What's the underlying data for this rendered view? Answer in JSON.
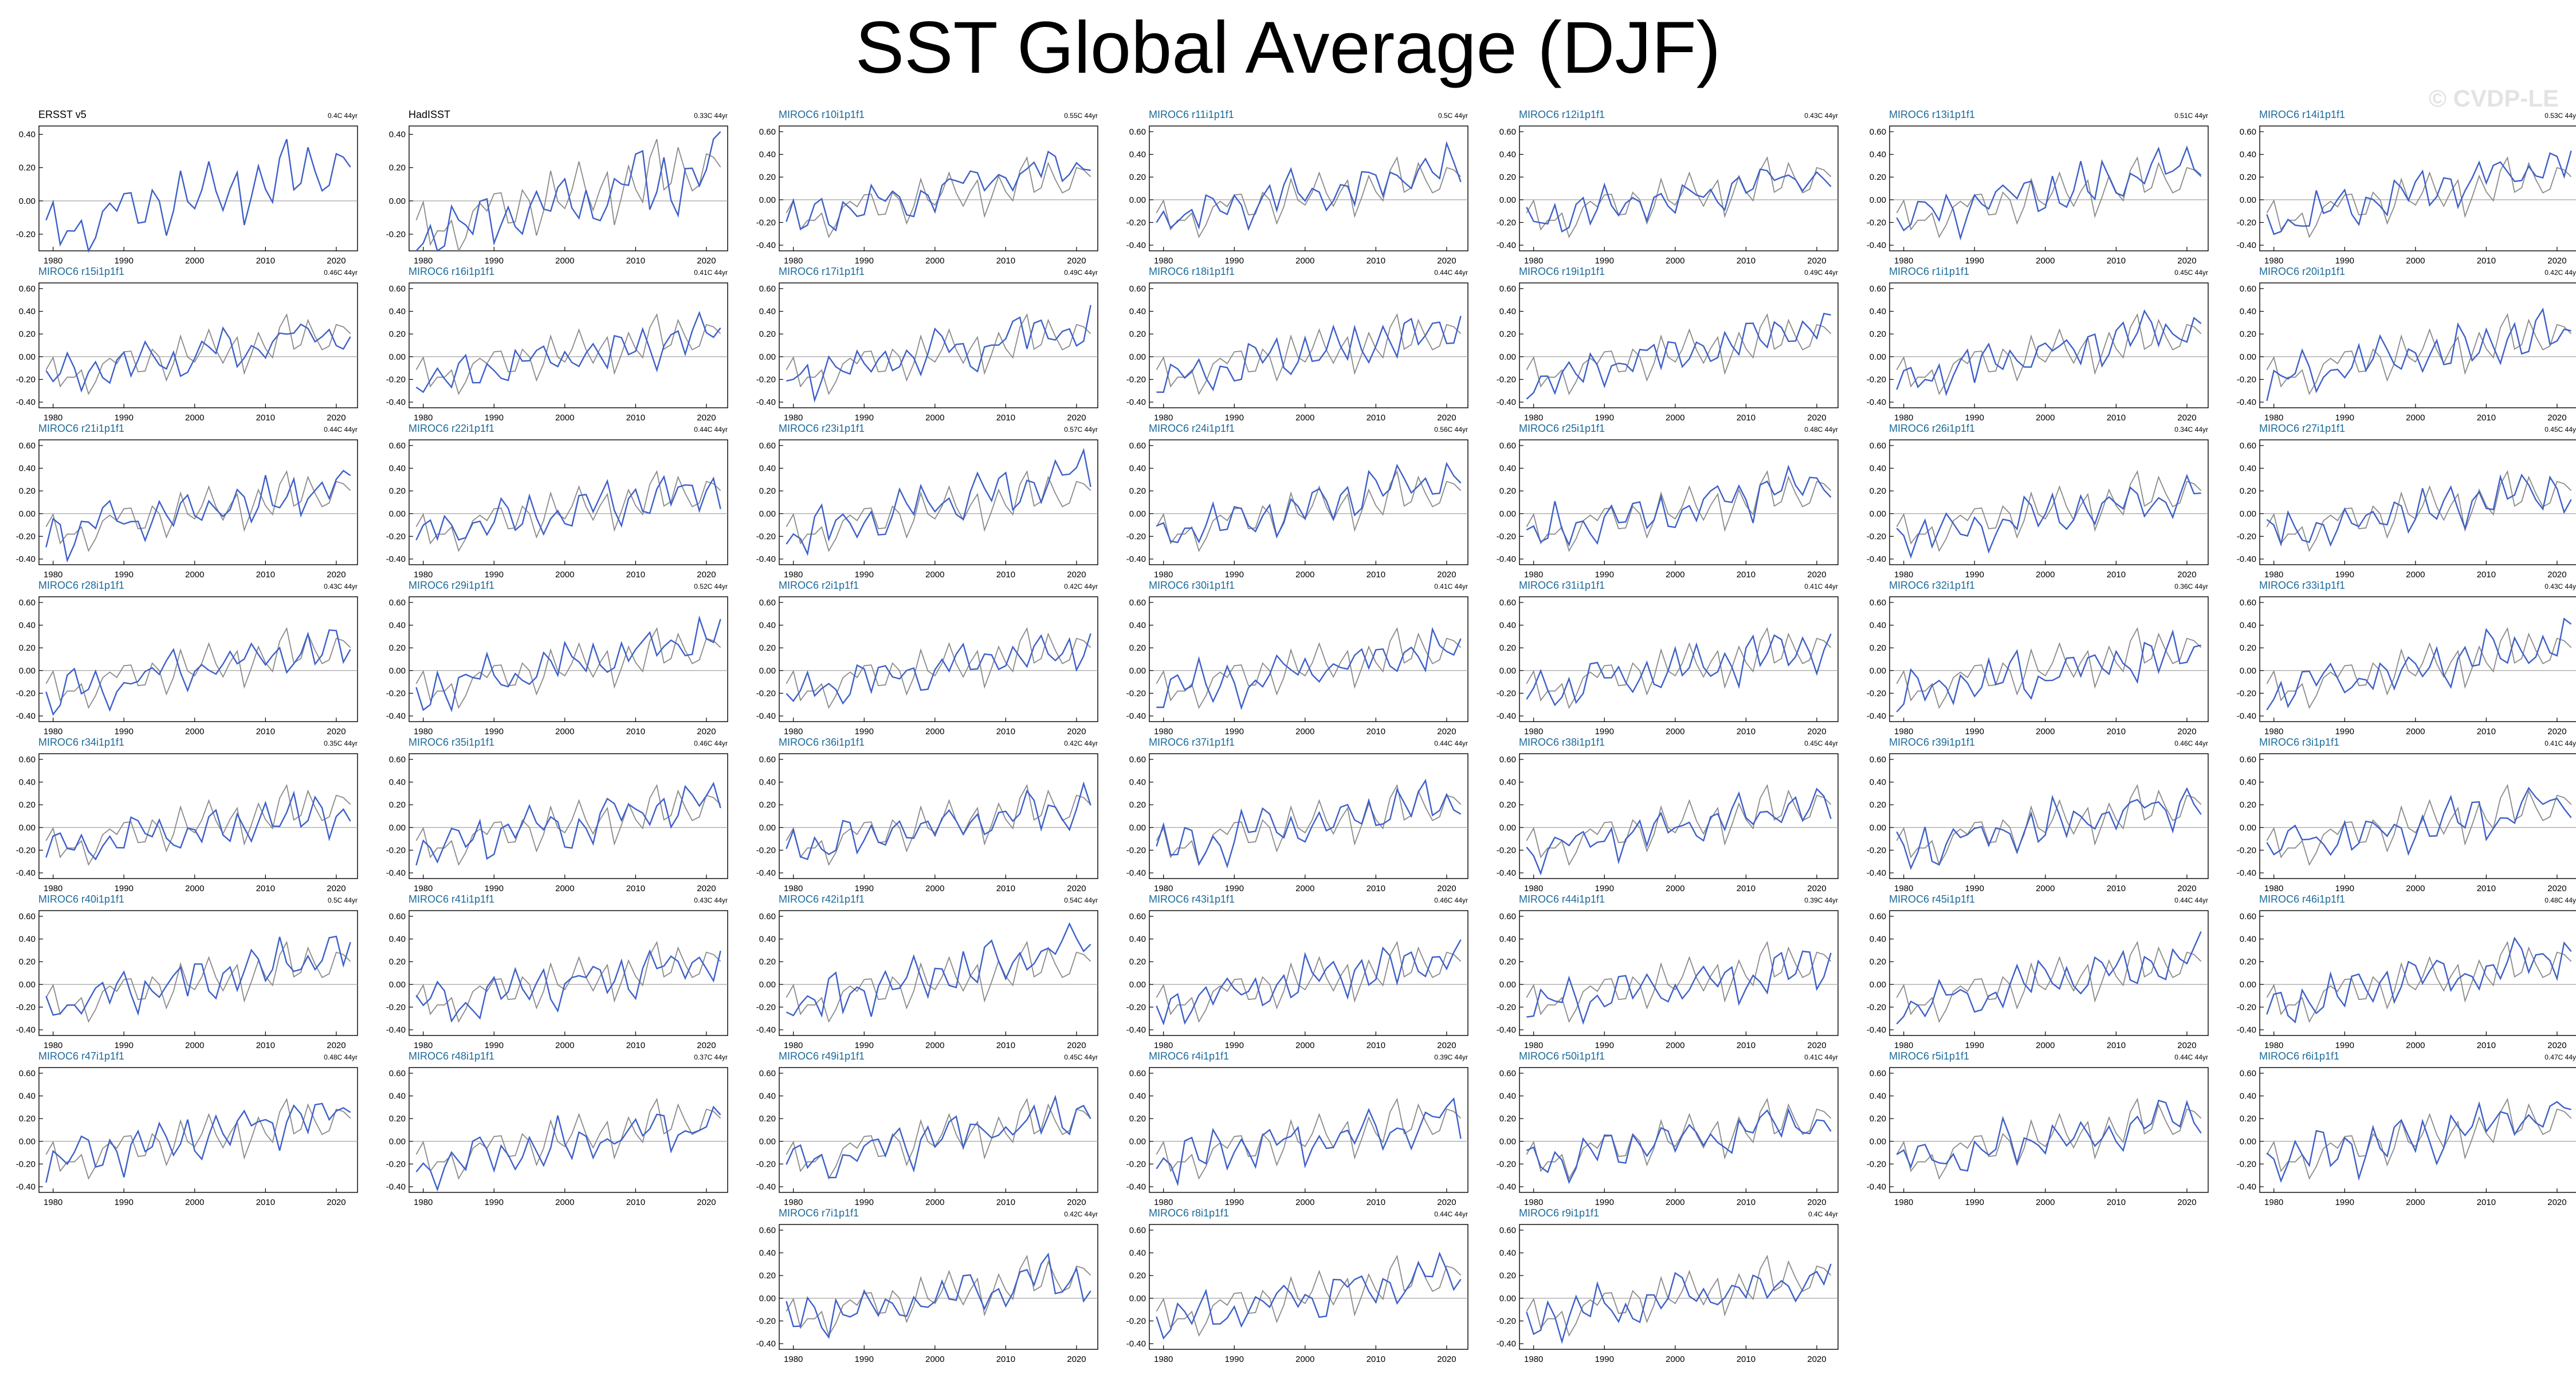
{
  "title": "SST Global Average (DJF)",
  "watermark": "© CVDP-LE",
  "colors": {
    "model": "#3d5fc9",
    "obs": "#8a8a8a",
    "label_model": "#1b6a9a",
    "label_obs": "#000000"
  },
  "chart_data": {
    "type": "line",
    "grid": "7x8 small multiples",
    "xlim": [
      1978,
      2023
    ],
    "x_ticks": [
      "1980",
      "1990",
      "2000",
      "2010",
      "2020"
    ],
    "y_ticks_obs": [
      "0.40",
      "0.20",
      "0.00",
      "-0.20"
    ],
    "y_ticks_model": [
      "0.60",
      "0.40",
      "0.20",
      "0.00",
      "-0.20",
      "-0.40"
    ],
    "unit_suffix": "C 44yr",
    "panels": [
      {
        "label": "ERSST v5",
        "trend": "0.4C 44yr",
        "obs": true
      },
      {
        "label": "HadISST",
        "trend": "0.33C 44yr",
        "obs": true
      },
      {
        "label": "MIROC6 r10i1p1f1",
        "trend": "0.55C 44yr"
      },
      {
        "label": "MIROC6 r11i1p1f1",
        "trend": "0.5C 44yr"
      },
      {
        "label": "MIROC6 r12i1p1f1",
        "trend": "0.43C 44yr"
      },
      {
        "label": "MIROC6 r13i1p1f1",
        "trend": "0.51C 44yr"
      },
      {
        "label": "MIROC6 r14i1p1f1",
        "trend": "0.53C 44yr"
      },
      {
        "label": "MIROC6 r15i1p1f1",
        "trend": "0.46C 44yr"
      },
      {
        "label": "MIROC6 r16i1p1f1",
        "trend": "0.41C 44yr"
      },
      {
        "label": "MIROC6 r17i1p1f1",
        "trend": "0.49C 44yr"
      },
      {
        "label": "MIROC6 r18i1p1f1",
        "trend": "0.44C 44yr"
      },
      {
        "label": "MIROC6 r19i1p1f1",
        "trend": "0.49C 44yr"
      },
      {
        "label": "MIROC6 r1i1p1f1",
        "trend": "0.45C 44yr"
      },
      {
        "label": "MIROC6 r20i1p1f1",
        "trend": "0.42C 44yr"
      },
      {
        "label": "MIROC6 r21i1p1f1",
        "trend": "0.44C 44yr"
      },
      {
        "label": "MIROC6 r22i1p1f1",
        "trend": "0.44C 44yr"
      },
      {
        "label": "MIROC6 r23i1p1f1",
        "trend": "0.57C 44yr"
      },
      {
        "label": "MIROC6 r24i1p1f1",
        "trend": "0.56C 44yr"
      },
      {
        "label": "MIROC6 r25i1p1f1",
        "trend": "0.48C 44yr"
      },
      {
        "label": "MIROC6 r26i1p1f1",
        "trend": "0.34C 44yr"
      },
      {
        "label": "MIROC6 r27i1p1f1",
        "trend": "0.45C 44yr"
      },
      {
        "label": "MIROC6 r28i1p1f1",
        "trend": "0.43C 44yr"
      },
      {
        "label": "MIROC6 r29i1p1f1",
        "trend": "0.52C 44yr"
      },
      {
        "label": "MIROC6 r2i1p1f1",
        "trend": "0.42C 44yr"
      },
      {
        "label": "MIROC6 r30i1p1f1",
        "trend": "0.41C 44yr"
      },
      {
        "label": "MIROC6 r31i1p1f1",
        "trend": "0.41C 44yr"
      },
      {
        "label": "MIROC6 r32i1p1f1",
        "trend": "0.36C 44yr"
      },
      {
        "label": "MIROC6 r33i1p1f1",
        "trend": "0.43C 44yr"
      },
      {
        "label": "MIROC6 r34i1p1f1",
        "trend": "0.35C 44yr"
      },
      {
        "label": "MIROC6 r35i1p1f1",
        "trend": "0.46C 44yr"
      },
      {
        "label": "MIROC6 r36i1p1f1",
        "trend": "0.42C 44yr"
      },
      {
        "label": "MIROC6 r37i1p1f1",
        "trend": "0.44C 44yr"
      },
      {
        "label": "MIROC6 r38i1p1f1",
        "trend": "0.45C 44yr"
      },
      {
        "label": "MIROC6 r39i1p1f1",
        "trend": "0.46C 44yr"
      },
      {
        "label": "MIROC6 r3i1p1f1",
        "trend": "0.41C 44yr"
      },
      {
        "label": "MIROC6 r40i1p1f1",
        "trend": "0.5C 44yr"
      },
      {
        "label": "MIROC6 r41i1p1f1",
        "trend": "0.43C 44yr"
      },
      {
        "label": "MIROC6 r42i1p1f1",
        "trend": "0.54C 44yr"
      },
      {
        "label": "MIROC6 r43i1p1f1",
        "trend": "0.46C 44yr"
      },
      {
        "label": "MIROC6 r44i1p1f1",
        "trend": "0.39C 44yr"
      },
      {
        "label": "MIROC6 r45i1p1f1",
        "trend": "0.44C 44yr"
      },
      {
        "label": "MIROC6 r46i1p1f1",
        "trend": "0.48C 44yr"
      },
      {
        "label": "MIROC6 r47i1p1f1",
        "trend": "0.48C 44yr"
      },
      {
        "label": "MIROC6 r48i1p1f1",
        "trend": "0.37C 44yr"
      },
      {
        "label": "MIROC6 r49i1p1f1",
        "trend": "0.45C 44yr"
      },
      {
        "label": "MIROC6 r4i1p1f1",
        "trend": "0.39C 44yr"
      },
      {
        "label": "MIROC6 r50i1p1f1",
        "trend": "0.41C 44yr"
      },
      {
        "label": "MIROC6 r5i1p1f1",
        "trend": "0.44C 44yr"
      },
      {
        "label": "MIROC6 r6i1p1f1",
        "trend": "0.47C 44yr"
      },
      {
        "label": "MIROC6 r7i1p1f1",
        "trend": "0.42C 44yr"
      },
      {
        "label": "MIROC6 r8i1p1f1",
        "trend": "0.44C 44yr"
      },
      {
        "label": "MIROC6 r9i1p1f1",
        "trend": "0.4C 44yr"
      }
    ]
  }
}
